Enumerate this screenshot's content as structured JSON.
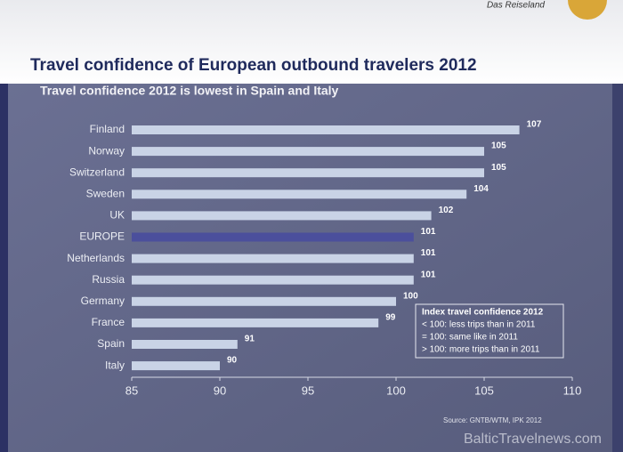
{
  "chart_data": {
    "type": "bar",
    "orientation": "horizontal",
    "brand": "Das Reiseland",
    "title": "Travel confidence of European outbound travelers 2012",
    "subtitle": "Travel confidence 2012 is lowest in Spain and Italy",
    "categories": [
      "Finland",
      "Norway",
      "Switzerland",
      "Sweden",
      "UK",
      "EUROPE",
      "Netherlands",
      "Russia",
      "Germany",
      "France",
      "Spain",
      "Italy"
    ],
    "values": [
      107,
      105,
      105,
      104,
      102,
      101,
      101,
      101,
      100,
      99,
      91,
      90
    ],
    "colors": [
      "#c9d3e6",
      "#c9d3e6",
      "#c9d3e6",
      "#c9d3e6",
      "#c9d3e6",
      "#4b4f9c",
      "#c9d3e6",
      "#c9d3e6",
      "#c9d3e6",
      "#c9d3e6",
      "#c9d3e6",
      "#c9d3e6"
    ],
    "xlim": [
      85,
      110
    ],
    "xticks": [
      85,
      90,
      95,
      100,
      105,
      110
    ],
    "legend_box": {
      "title": "Index travel confidence 2012",
      "lines": [
        "< 100: less trips than in 2011",
        "= 100: same like in 2011",
        "> 100: more trips than in 2011"
      ]
    },
    "source": "Source: GNTB/WTM, IPK 2012",
    "watermark": "BalticTravelnews.com"
  }
}
